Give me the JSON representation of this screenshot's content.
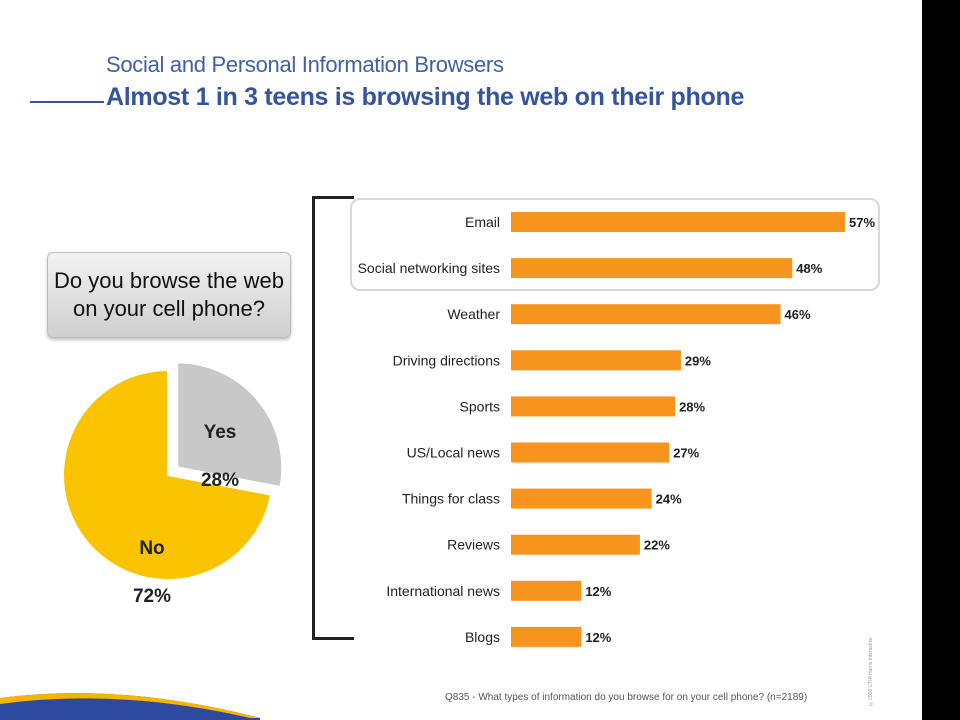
{
  "slide": {
    "subtitle": "Social and Personal Information Browsers",
    "title": "Almost 1 in 3 teens is browsing the web on their phone",
    "footnote": "Q835 - What types of information do you browse for on your cell phone? (n=2189)",
    "vertical_note": "©2008 CTIA Harris Interactive"
  },
  "colors": {
    "title": "#3454a0",
    "bar": "#f7941d",
    "pie_no": "#f9c300",
    "pie_yes": "#c8c8c8"
  },
  "chart_data": [
    {
      "type": "pie",
      "title": "Do you browse the web\non your cell phone?",
      "slices": [
        {
          "name": "Yes",
          "value": 28,
          "label": "28%",
          "exploded": true
        },
        {
          "name": "No",
          "value": 72,
          "label": "72%"
        }
      ]
    },
    {
      "type": "bar",
      "orientation": "horizontal",
      "categories": [
        "Email",
        "Social networking sites",
        "Weather",
        "Driving directions",
        "Sports",
        "US/Local news",
        "Things for class",
        "Reviews",
        "International news",
        "Blogs"
      ],
      "values": [
        57,
        48,
        46,
        29,
        28,
        27,
        24,
        22,
        12,
        12
      ],
      "value_labels": [
        "57%",
        "48%",
        "46%",
        "29%",
        "28%",
        "27%",
        "24%",
        "22%",
        "12%",
        "12%"
      ],
      "highlighted": [
        "Email",
        "Social networking sites"
      ],
      "xlim": [
        0,
        60
      ]
    }
  ]
}
